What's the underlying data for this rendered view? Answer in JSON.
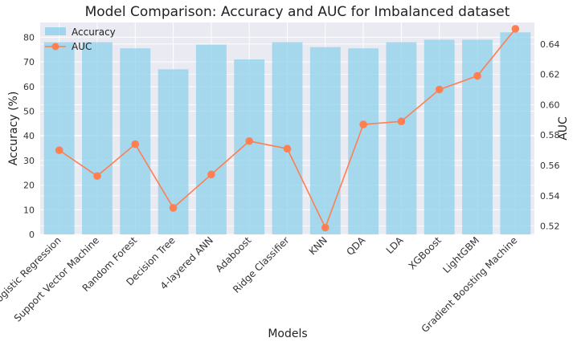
{
  "chart_data": {
    "type": "bar",
    "title": "Model Comparison: Accuracy and AUC for Imbalanced dataset",
    "xlabel": "Models",
    "ylabel": "Accuracy (%)",
    "y2label": "AUC",
    "categories": [
      "Logistic Regression",
      "Support Vector Machine",
      "Random Forest",
      "Decision Tree",
      "4-layered ANN",
      "Adaboost",
      "Ridge Classifier",
      "KNN",
      "QDA",
      "LDA",
      "XGBoost",
      "LightGBM",
      "Gradient Boosting Machine"
    ],
    "series": [
      {
        "name": "Accuracy",
        "type": "bar",
        "axis": "left",
        "color": "#87ceeb",
        "values": [
          78,
          78,
          75.5,
          67,
          77,
          71,
          78,
          76,
          75.5,
          78,
          79,
          79,
          82
        ]
      },
      {
        "name": "AUC",
        "type": "line",
        "axis": "right",
        "color": "#ff7f50",
        "values": [
          0.57,
          0.553,
          0.574,
          0.532,
          0.554,
          0.576,
          0.571,
          0.519,
          0.587,
          0.589,
          0.61,
          0.619,
          0.65
        ]
      }
    ],
    "ylim": [
      0,
      86
    ],
    "y2lim": [
      0.5145,
      0.6542
    ],
    "yticks": [
      0,
      10,
      20,
      30,
      40,
      50,
      60,
      70,
      80
    ],
    "y2ticks": [
      0.52,
      0.54,
      0.56,
      0.58,
      0.6,
      0.62,
      0.64
    ],
    "grid": true,
    "legend": "top-left"
  }
}
